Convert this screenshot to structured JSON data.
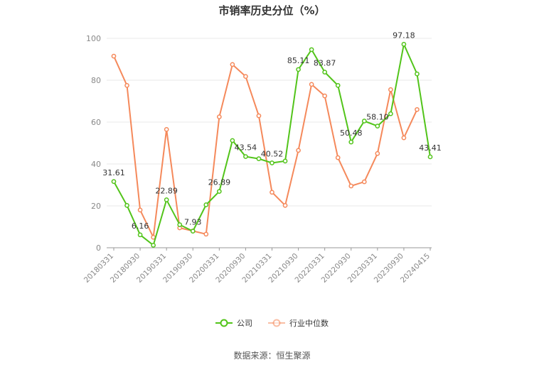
{
  "title": "市销率历史分位（%）",
  "source": "数据来源：恒生聚源",
  "chart_data": {
    "type": "line",
    "y_ticks": [
      "0",
      "20",
      "40",
      "60",
      "80",
      "100"
    ],
    "ylim": [
      0,
      100
    ],
    "x_tick_labels": [
      "20180331",
      "20180930",
      "20190331",
      "20190930",
      "20200331",
      "20200930",
      "20210331",
      "20210930",
      "20220331",
      "20220930",
      "20230331",
      "20230930",
      "20240415"
    ],
    "grid": true,
    "legend_position": "bottom",
    "series": [
      {
        "name": "公司",
        "color": "#52c41a",
        "values": [
          31.61,
          20.2,
          6.16,
          1.2,
          22.89,
          11.0,
          7.93,
          20.5,
          26.89,
          51.2,
          43.54,
          42.5,
          40.52,
          41.4,
          85.11,
          94.6,
          83.87,
          77.5,
          50.48,
          60.5,
          58.1,
          64.0,
          97.18,
          83.0,
          43.41
        ],
        "labels": [
          "31.61",
          "",
          "6.16",
          "",
          "22.89",
          "",
          "7.93",
          "",
          "26.89",
          "",
          "43.54",
          "",
          "40.52",
          "",
          "85.11",
          "",
          "83.87",
          "",
          "50.48",
          "",
          "58.10",
          "",
          "97.18",
          "",
          "43.41"
        ]
      },
      {
        "name": "行业中位数",
        "color": "#f5895b",
        "values": [
          91.5,
          77.5,
          18.0,
          5.0,
          56.5,
          9.5,
          8.0,
          6.5,
          62.5,
          87.5,
          81.8,
          63.0,
          26.5,
          20.2,
          46.5,
          78.0,
          72.5,
          43.0,
          29.5,
          31.5,
          45.0,
          75.5,
          52.5,
          66.0,
          null
        ]
      }
    ]
  }
}
